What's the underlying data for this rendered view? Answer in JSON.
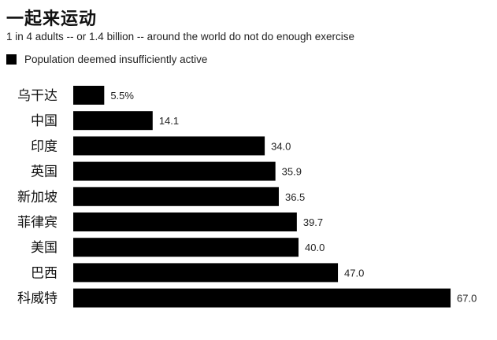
{
  "title": "一起来运动",
  "subtitle": "1 in 4 adults -- or 1.4 billion -- around the world do not do enough exercise",
  "legend": {
    "label": "Population deemed insufficiently active",
    "color": "#000000"
  },
  "chart_data": {
    "type": "bar",
    "orientation": "horizontal",
    "title": "一起来运动",
    "subtitle": "1 in 4 adults -- or 1.4 billion -- around the world do not do enough exercise",
    "categories": [
      "乌干达",
      "中国",
      "印度",
      "英国",
      "新加坡",
      "菲律宾",
      "美国",
      "巴西",
      "科威特"
    ],
    "series": [
      {
        "name": "Population deemed insufficiently active",
        "values": [
          5.5,
          14.1,
          34.0,
          35.9,
          36.5,
          39.7,
          40.0,
          47.0,
          67.0
        ],
        "labels": [
          "5.5%",
          "14.1",
          "34.0",
          "35.9",
          "36.5",
          "39.7",
          "40.0",
          "47.0",
          "67.0"
        ],
        "color": "#000000"
      }
    ],
    "xlim": [
      0,
      67
    ],
    "grid": false,
    "legend_position": "top-left"
  }
}
